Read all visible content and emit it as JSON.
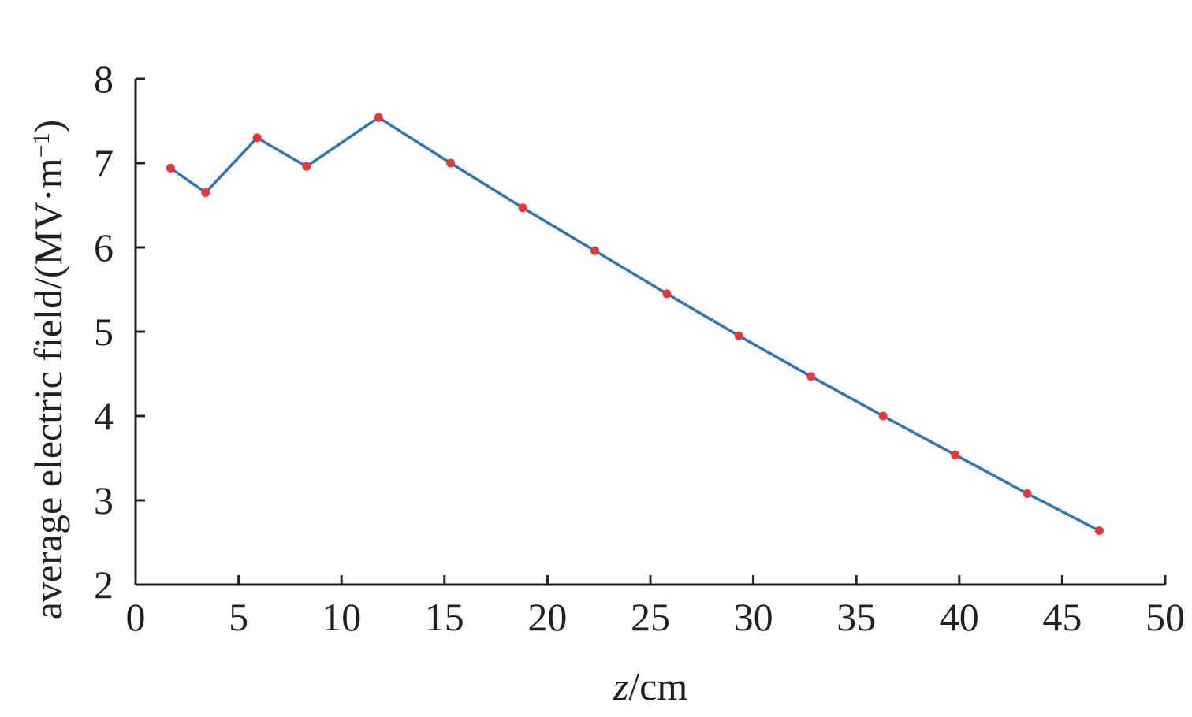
{
  "chart_data": {
    "type": "line",
    "title": "",
    "xlabel_var": "z",
    "xlabel_unit": "/cm",
    "ylabel_main": "average electric field/(MV·m",
    "ylabel_sup": "−1",
    "ylabel_close": ")",
    "xlim": [
      0,
      50
    ],
    "ylim": [
      2,
      8
    ],
    "xticks": [
      "0",
      "5",
      "10",
      "15",
      "20",
      "25",
      "30",
      "35",
      "40",
      "45",
      "50"
    ],
    "yticks": [
      "2",
      "3",
      "4",
      "5",
      "6",
      "7",
      "8"
    ],
    "grid": false,
    "legend": "none",
    "line_color": "#2e75b6",
    "marker_color": "#e8363a",
    "series": [
      {
        "x": [
          1.7,
          3.4,
          5.9,
          8.3,
          11.8,
          15.3,
          18.8,
          22.3,
          25.8,
          29.3,
          32.8,
          36.3,
          39.8,
          43.3,
          46.8
        ],
        "y": [
          6.94,
          6.65,
          7.3,
          6.96,
          7.54,
          7.0,
          6.47,
          5.96,
          5.45,
          4.95,
          4.47,
          4.0,
          3.54,
          3.08,
          2.64
        ]
      }
    ]
  }
}
